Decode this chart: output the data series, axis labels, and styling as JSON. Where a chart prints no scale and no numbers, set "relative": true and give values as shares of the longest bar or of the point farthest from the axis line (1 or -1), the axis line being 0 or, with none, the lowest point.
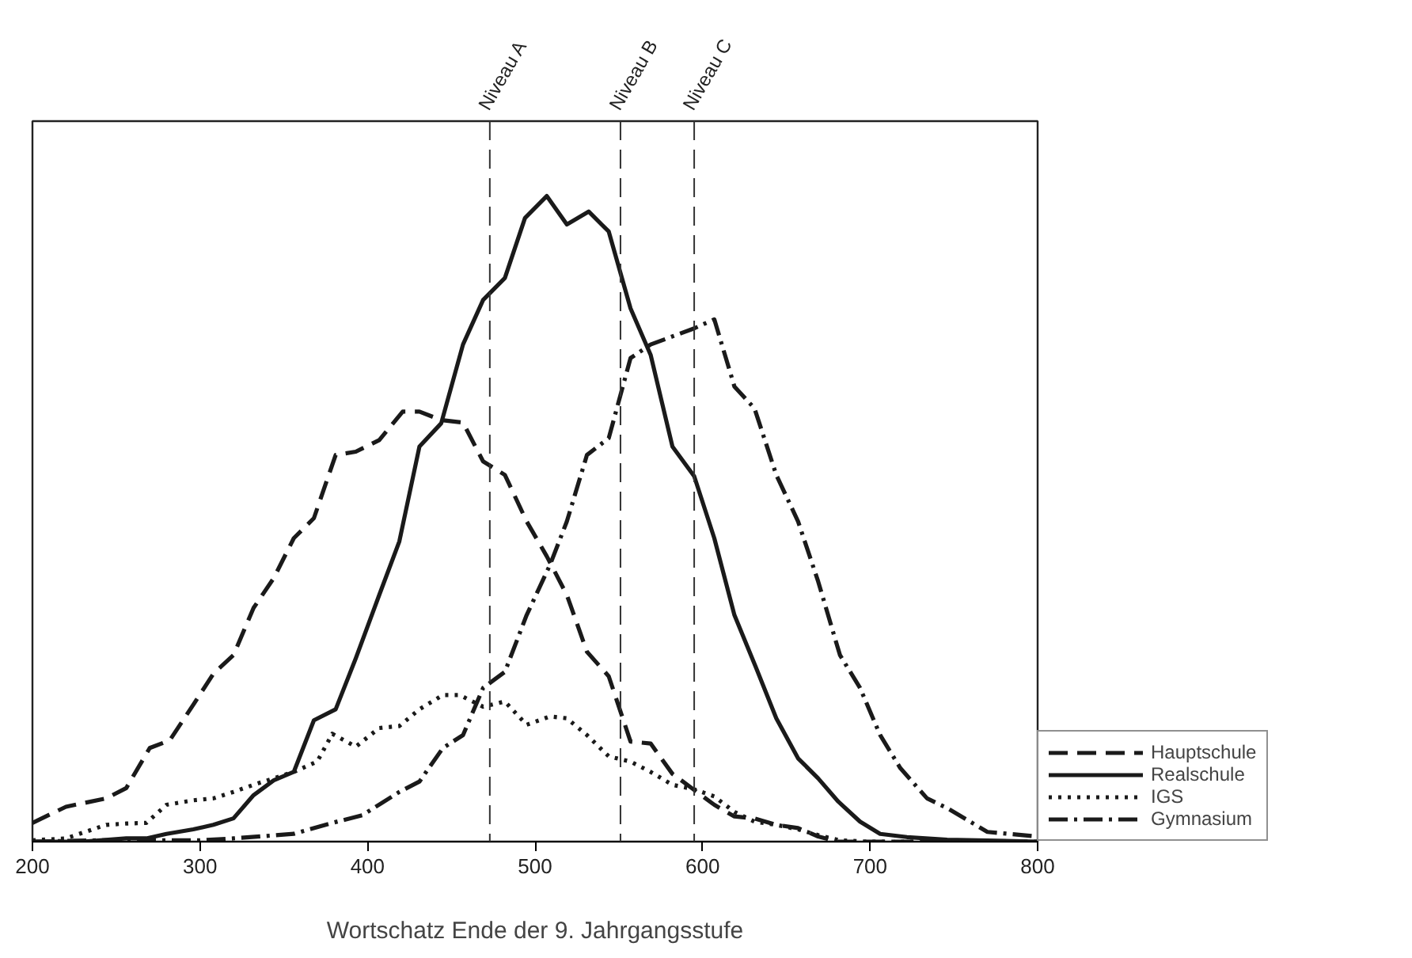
{
  "chart_data": {
    "type": "line",
    "relative": true,
    "xlabel": "Wortschatz Ende der 9. Jahrgangsstufe",
    "xlim": [
      200,
      800
    ],
    "xticks": [
      200,
      300,
      400,
      500,
      600,
      700,
      800
    ],
    "grid": false,
    "legend": "bottom right",
    "marker": "none",
    "series": [
      {
        "name": "Hauptschule",
        "color": "#1a1a1a",
        "line_style": "dashed",
        "x": [
          200,
          220,
          244,
          256,
          270,
          282,
          296,
          308,
          320,
          332,
          344,
          356,
          368,
          381,
          393,
          407,
          421,
          431,
          444,
          457,
          469,
          482,
          495,
          507,
          519,
          531,
          544,
          557,
          569,
          582,
          595,
          607,
          619,
          631,
          644,
          657,
          669,
          681,
          800
        ],
        "values": [
          0.029,
          0.054,
          0.067,
          0.083,
          0.145,
          0.157,
          0.212,
          0.26,
          0.289,
          0.362,
          0.408,
          0.47,
          0.501,
          0.599,
          0.604,
          0.622,
          0.666,
          0.666,
          0.653,
          0.649,
          0.589,
          0.568,
          0.496,
          0.442,
          0.382,
          0.294,
          0.256,
          0.155,
          0.152,
          0.105,
          0.08,
          0.057,
          0.039,
          0.036,
          0.026,
          0.021,
          0.008,
          0.0,
          0.0
        ]
      },
      {
        "name": "Realschule",
        "color": "#1a1a1a",
        "line_style": "solid",
        "x": [
          200,
          230,
          256,
          268,
          280,
          296,
          308,
          320,
          332,
          344,
          356,
          368,
          381,
          393,
          407,
          419,
          431,
          444,
          457,
          469,
          482,
          494,
          507,
          519,
          532,
          544,
          557,
          569,
          582,
          595,
          607,
          619,
          632,
          644,
          657,
          669,
          681,
          694,
          706,
          722,
          746,
          800
        ],
        "values": [
          0.0,
          0.0,
          0.005,
          0.005,
          0.012,
          0.019,
          0.026,
          0.036,
          0.072,
          0.095,
          0.108,
          0.188,
          0.205,
          0.284,
          0.382,
          0.465,
          0.612,
          0.648,
          0.77,
          0.839,
          0.873,
          0.966,
          1.0,
          0.956,
          0.976,
          0.945,
          0.826,
          0.754,
          0.612,
          0.566,
          0.47,
          0.351,
          0.269,
          0.191,
          0.129,
          0.098,
          0.062,
          0.031,
          0.012,
          0.007,
          0.003,
          0.0
        ]
      },
      {
        "name": "IGS",
        "color": "#1a1a1a",
        "line_style": "dotted",
        "x": [
          200,
          220,
          244,
          256,
          268,
          280,
          296,
          308,
          320,
          332,
          344,
          356,
          370,
          379,
          393,
          407,
          419,
          431,
          445,
          455,
          469,
          482,
          495,
          509,
          519,
          531,
          544,
          557,
          569,
          582,
          595,
          607,
          619,
          631,
          644,
          657,
          669,
          682,
          698,
          800
        ],
        "values": [
          0.002,
          0.005,
          0.026,
          0.028,
          0.029,
          0.057,
          0.064,
          0.067,
          0.077,
          0.088,
          0.098,
          0.108,
          0.124,
          0.167,
          0.147,
          0.176,
          0.179,
          0.205,
          0.227,
          0.227,
          0.209,
          0.217,
          0.181,
          0.194,
          0.191,
          0.165,
          0.132,
          0.124,
          0.108,
          0.088,
          0.081,
          0.07,
          0.046,
          0.031,
          0.026,
          0.019,
          0.01,
          0.002,
          0.0,
          0.0
        ]
      },
      {
        "name": "Gymnasium",
        "color": "#1a1a1a",
        "line_style": "dashdot",
        "x": [
          200,
          240,
          300,
          320,
          356,
          379,
          397,
          419,
          431,
          445,
          457,
          469,
          482,
          495,
          509,
          519,
          531,
          544,
          557,
          569,
          595,
          607,
          619,
          631,
          644,
          657,
          669,
          682,
          694,
          706,
          718,
          734,
          746,
          770,
          800
        ],
        "values": [
          0.0,
          0.002,
          0.002,
          0.005,
          0.012,
          0.029,
          0.041,
          0.077,
          0.093,
          0.145,
          0.165,
          0.238,
          0.263,
          0.351,
          0.429,
          0.496,
          0.599,
          0.625,
          0.749,
          0.77,
          0.795,
          0.809,
          0.705,
          0.671,
          0.568,
          0.496,
          0.403,
          0.289,
          0.238,
          0.165,
          0.114,
          0.067,
          0.052,
          0.015,
          0.008
        ]
      }
    ],
    "ref_lines": [
      {
        "axis": "x",
        "value": 473,
        "label": "Niveau A",
        "color": "#333333",
        "line_style": "dashed"
      },
      {
        "axis": "x",
        "value": 551,
        "label": "Niveau B",
        "color": "#333333",
        "line_style": "dashed"
      },
      {
        "axis": "x",
        "value": 595,
        "label": "Niveau C",
        "color": "#333333",
        "line_style": "dashed"
      }
    ]
  }
}
